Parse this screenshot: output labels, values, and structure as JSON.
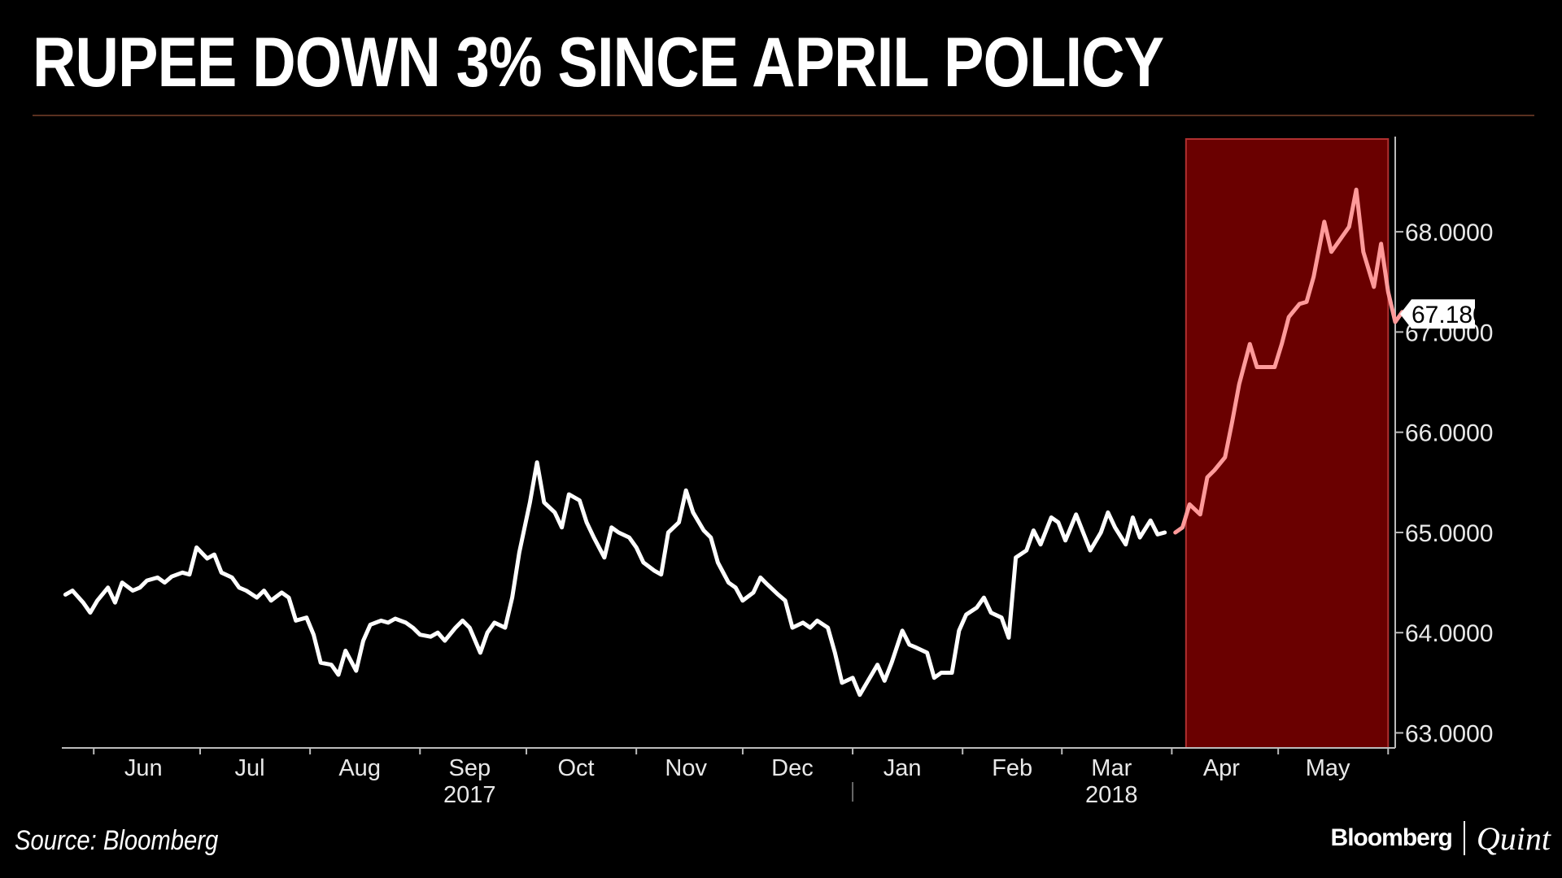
{
  "title": "RUPEE DOWN 3% SINCE APRIL POLICY",
  "source": "Source: Bloomberg",
  "brand": {
    "main": "Bloomberg",
    "sub": "Quint"
  },
  "colors": {
    "line": "#ffffff",
    "highlight_line": "#ff9a9a",
    "highlight_fill": "#6a0000",
    "highlight_border": "#b03030",
    "axis": "#bbbbbb"
  },
  "chart_data": {
    "type": "line",
    "title": "RUPEE DOWN 3% SINCE APRIL POLICY",
    "xlabel": "",
    "ylabel": "",
    "ylim": [
      62.85,
      68.95
    ],
    "y_axis_side": "right",
    "y_ticks": [
      63,
      64,
      65,
      66,
      67,
      68
    ],
    "y_tick_labels": [
      "63.0000",
      "64.0000",
      "65.0000",
      "66.0000",
      "67.0000",
      "68.0000"
    ],
    "x_range": [
      "2017-05-23",
      "2018-06-03"
    ],
    "x_month_labels": [
      {
        "label": "Jun",
        "date": "2017-06-15"
      },
      {
        "label": "Jul",
        "date": "2017-07-15"
      },
      {
        "label": "Aug",
        "date": "2017-08-15"
      },
      {
        "label": "Sep",
        "date": "2017-09-15"
      },
      {
        "label": "Oct",
        "date": "2017-10-15"
      },
      {
        "label": "Nov",
        "date": "2017-11-15"
      },
      {
        "label": "Dec",
        "date": "2017-12-15"
      },
      {
        "label": "Jan",
        "date": "2018-01-15"
      },
      {
        "label": "Feb",
        "date": "2018-02-15"
      },
      {
        "label": "Mar",
        "date": "2018-03-15"
      },
      {
        "label": "Apr",
        "date": "2018-04-15"
      },
      {
        "label": "May",
        "date": "2018-05-15"
      }
    ],
    "x_year_labels": [
      {
        "label": "2017",
        "date": "2017-09-15"
      },
      {
        "label": "2018",
        "date": "2018-03-15"
      }
    ],
    "year_divider": "2018-01-01",
    "last_value_label": "67.1800",
    "highlight_range": [
      "2018-04-05",
      "2018-06-01"
    ],
    "series": [
      {
        "points": [
          [
            "2017-05-24",
            64.38
          ],
          [
            "2017-05-26",
            64.42
          ],
          [
            "2017-05-29",
            64.3
          ],
          [
            "2017-05-31",
            64.2
          ],
          [
            "2017-06-02",
            64.32
          ],
          [
            "2017-06-05",
            64.45
          ],
          [
            "2017-06-07",
            64.3
          ],
          [
            "2017-06-09",
            64.5
          ],
          [
            "2017-06-12",
            64.42
          ],
          [
            "2017-06-14",
            64.45
          ],
          [
            "2017-06-16",
            64.52
          ],
          [
            "2017-06-19",
            64.55
          ],
          [
            "2017-06-21",
            64.5
          ],
          [
            "2017-06-23",
            64.56
          ],
          [
            "2017-06-26",
            64.6
          ],
          [
            "2017-06-28",
            64.58
          ],
          [
            "2017-06-30",
            64.85
          ],
          [
            "2017-07-03",
            64.74
          ],
          [
            "2017-07-05",
            64.78
          ],
          [
            "2017-07-07",
            64.6
          ],
          [
            "2017-07-10",
            64.55
          ],
          [
            "2017-07-12",
            64.45
          ],
          [
            "2017-07-14",
            64.42
          ],
          [
            "2017-07-17",
            64.35
          ],
          [
            "2017-07-19",
            64.42
          ],
          [
            "2017-07-21",
            64.32
          ],
          [
            "2017-07-24",
            64.4
          ],
          [
            "2017-07-26",
            64.35
          ],
          [
            "2017-07-28",
            64.12
          ],
          [
            "2017-07-31",
            64.15
          ],
          [
            "2017-08-02",
            63.98
          ],
          [
            "2017-08-04",
            63.7
          ],
          [
            "2017-08-07",
            63.68
          ],
          [
            "2017-08-09",
            63.58
          ],
          [
            "2017-08-11",
            63.82
          ],
          [
            "2017-08-14",
            63.62
          ],
          [
            "2017-08-16",
            63.92
          ],
          [
            "2017-08-18",
            64.08
          ],
          [
            "2017-08-21",
            64.12
          ],
          [
            "2017-08-23",
            64.1
          ],
          [
            "2017-08-25",
            64.14
          ],
          [
            "2017-08-28",
            64.1
          ],
          [
            "2017-08-30",
            64.05
          ],
          [
            "2017-09-01",
            63.98
          ],
          [
            "2017-09-04",
            63.96
          ],
          [
            "2017-09-06",
            64.0
          ],
          [
            "2017-09-08",
            63.92
          ],
          [
            "2017-09-11",
            64.05
          ],
          [
            "2017-09-13",
            64.12
          ],
          [
            "2017-09-15",
            64.05
          ],
          [
            "2017-09-18",
            63.8
          ],
          [
            "2017-09-20",
            64.0
          ],
          [
            "2017-09-22",
            64.1
          ],
          [
            "2017-09-25",
            64.05
          ],
          [
            "2017-09-27",
            64.35
          ],
          [
            "2017-09-29",
            64.8
          ],
          [
            "2017-10-02",
            65.3
          ],
          [
            "2017-10-04",
            65.7
          ],
          [
            "2017-10-06",
            65.3
          ],
          [
            "2017-10-09",
            65.2
          ],
          [
            "2017-10-11",
            65.05
          ],
          [
            "2017-10-13",
            65.38
          ],
          [
            "2017-10-16",
            65.32
          ],
          [
            "2017-10-18",
            65.1
          ],
          [
            "2017-10-20",
            64.95
          ],
          [
            "2017-10-23",
            64.75
          ],
          [
            "2017-10-25",
            65.05
          ],
          [
            "2017-10-27",
            65.0
          ],
          [
            "2017-10-30",
            64.95
          ],
          [
            "2017-11-01",
            64.85
          ],
          [
            "2017-11-03",
            64.7
          ],
          [
            "2017-11-06",
            64.62
          ],
          [
            "2017-11-08",
            64.58
          ],
          [
            "2017-11-10",
            65.0
          ],
          [
            "2017-11-13",
            65.1
          ],
          [
            "2017-11-15",
            65.42
          ],
          [
            "2017-11-17",
            65.2
          ],
          [
            "2017-11-20",
            65.02
          ],
          [
            "2017-11-22",
            64.95
          ],
          [
            "2017-11-24",
            64.7
          ],
          [
            "2017-11-27",
            64.5
          ],
          [
            "2017-11-29",
            64.45
          ],
          [
            "2017-12-01",
            64.32
          ],
          [
            "2017-12-04",
            64.4
          ],
          [
            "2017-12-06",
            64.55
          ],
          [
            "2017-12-08",
            64.48
          ],
          [
            "2017-12-11",
            64.38
          ],
          [
            "2017-12-13",
            64.32
          ],
          [
            "2017-12-15",
            64.05
          ],
          [
            "2017-12-18",
            64.1
          ],
          [
            "2017-12-20",
            64.05
          ],
          [
            "2017-12-22",
            64.12
          ],
          [
            "2017-12-25",
            64.05
          ],
          [
            "2017-12-27",
            63.8
          ],
          [
            "2017-12-29",
            63.5
          ],
          [
            "2018-01-01",
            63.55
          ],
          [
            "2018-01-03",
            63.38
          ],
          [
            "2018-01-05",
            63.5
          ],
          [
            "2018-01-08",
            63.68
          ],
          [
            "2018-01-10",
            63.52
          ],
          [
            "2018-01-12",
            63.7
          ],
          [
            "2018-01-15",
            64.02
          ],
          [
            "2018-01-17",
            63.88
          ],
          [
            "2018-01-19",
            63.85
          ],
          [
            "2018-01-22",
            63.8
          ],
          [
            "2018-01-24",
            63.55
          ],
          [
            "2018-01-26",
            63.6
          ],
          [
            "2018-01-29",
            63.6
          ],
          [
            "2018-01-31",
            64.02
          ],
          [
            "2018-02-02",
            64.18
          ],
          [
            "2018-02-05",
            64.25
          ],
          [
            "2018-02-07",
            64.35
          ],
          [
            "2018-02-09",
            64.2
          ],
          [
            "2018-02-12",
            64.15
          ],
          [
            "2018-02-14",
            63.95
          ],
          [
            "2018-02-16",
            64.75
          ],
          [
            "2018-02-19",
            64.82
          ],
          [
            "2018-02-21",
            65.02
          ],
          [
            "2018-02-23",
            64.88
          ],
          [
            "2018-02-26",
            65.15
          ],
          [
            "2018-02-28",
            65.1
          ],
          [
            "2018-03-02",
            64.92
          ],
          [
            "2018-03-05",
            65.18
          ],
          [
            "2018-03-07",
            65.0
          ],
          [
            "2018-03-09",
            64.82
          ],
          [
            "2018-03-12",
            65.0
          ],
          [
            "2018-03-14",
            65.2
          ],
          [
            "2018-03-16",
            65.05
          ],
          [
            "2018-03-19",
            64.88
          ],
          [
            "2018-03-21",
            65.15
          ],
          [
            "2018-03-23",
            64.95
          ],
          [
            "2018-03-26",
            65.12
          ],
          [
            "2018-03-28",
            64.98
          ],
          [
            "2018-03-30",
            65.0
          ]
        ]
      },
      {
        "points": [
          [
            "2018-04-02",
            65.0
          ],
          [
            "2018-04-04",
            65.05
          ],
          [
            "2018-04-06",
            65.28
          ],
          [
            "2018-04-09",
            65.18
          ],
          [
            "2018-04-11",
            65.55
          ],
          [
            "2018-04-13",
            65.62
          ],
          [
            "2018-04-16",
            65.75
          ],
          [
            "2018-04-18",
            66.1
          ],
          [
            "2018-04-20",
            66.48
          ],
          [
            "2018-04-23",
            66.88
          ],
          [
            "2018-04-25",
            66.65
          ],
          [
            "2018-04-27",
            66.65
          ],
          [
            "2018-04-30",
            66.65
          ],
          [
            "2018-05-02",
            66.88
          ],
          [
            "2018-05-04",
            67.15
          ],
          [
            "2018-05-07",
            67.28
          ],
          [
            "2018-05-09",
            67.3
          ],
          [
            "2018-05-11",
            67.55
          ],
          [
            "2018-05-14",
            68.1
          ],
          [
            "2018-05-16",
            67.8
          ],
          [
            "2018-05-18",
            67.9
          ],
          [
            "2018-05-21",
            68.05
          ],
          [
            "2018-05-23",
            68.42
          ],
          [
            "2018-05-25",
            67.8
          ],
          [
            "2018-05-28",
            67.45
          ],
          [
            "2018-05-30",
            67.88
          ],
          [
            "2018-06-01",
            67.4
          ],
          [
            "2018-06-03",
            67.1
          ],
          [
            "2018-06-05",
            67.2
          ]
        ]
      }
    ]
  }
}
